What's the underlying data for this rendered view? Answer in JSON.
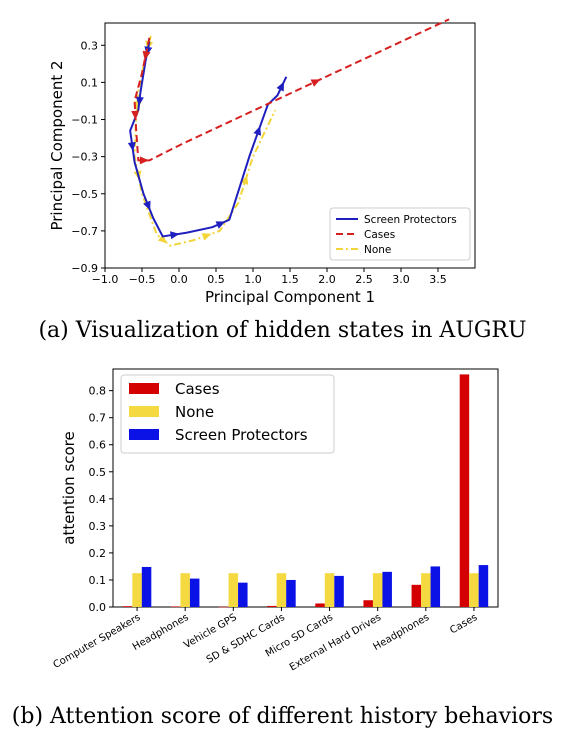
{
  "captions": {
    "a": "(a) Visualization of hidden states in AUGRU",
    "b": "(b) Attention score of different history behaviors"
  },
  "chart_data": [
    {
      "type": "line",
      "xlabel": "Principal Component 1",
      "ylabel": "Principal Component 2",
      "xlim": [
        -1.0,
        4.0
      ],
      "ylim": [
        -0.9,
        0.42
      ],
      "xticks": [
        "-1.0",
        "-0.5",
        "0.0",
        "0.5",
        "1.0",
        "1.5",
        "2.0",
        "2.5",
        "3.0",
        "3.5"
      ],
      "yticks": [
        "-0.9",
        "-0.7",
        "-0.5",
        "-0.3",
        "-0.1",
        "0.1",
        "0.3"
      ],
      "legend_position": "lower-right",
      "series": [
        {
          "name": "Screen Protectors",
          "color": "#1f1fbf",
          "dash": "solid",
          "points": [
            [
              -0.4,
              0.32
            ],
            [
              -0.45,
              0.22
            ],
            [
              -0.52,
              0.05
            ],
            [
              -0.55,
              -0.05
            ],
            [
              -0.66,
              -0.16
            ],
            [
              -0.6,
              -0.33
            ],
            [
              -0.48,
              -0.5
            ],
            [
              -0.35,
              -0.63
            ],
            [
              -0.22,
              -0.73
            ],
            [
              0.1,
              -0.71
            ],
            [
              0.45,
              -0.68
            ],
            [
              0.68,
              -0.64
            ],
            [
              0.95,
              -0.3
            ],
            [
              1.2,
              -0.02
            ],
            [
              1.33,
              0.03
            ],
            [
              1.45,
              0.13
            ]
          ]
        },
        {
          "name": "Cases",
          "color": "#d62020",
          "dash": "dashed",
          "points": [
            [
              -0.4,
              0.34
            ],
            [
              -0.5,
              0.15
            ],
            [
              -0.6,
              0.0
            ],
            [
              -0.58,
              -0.15
            ],
            [
              -0.55,
              -0.32
            ],
            [
              -0.4,
              -0.32
            ],
            [
              0.05,
              -0.23
            ],
            [
              3.65,
              0.44
            ]
          ]
        },
        {
          "name": "None",
          "color": "#f2d53a",
          "dash": "dashdot",
          "points": [
            [
              -0.38,
              0.35
            ],
            [
              -0.45,
              0.25
            ],
            [
              -0.55,
              0.05
            ],
            [
              -0.58,
              -0.1
            ],
            [
              -0.6,
              -0.3
            ],
            [
              -0.5,
              -0.5
            ],
            [
              -0.3,
              -0.72
            ],
            [
              -0.12,
              -0.78
            ],
            [
              0.2,
              -0.75
            ],
            [
              0.55,
              -0.7
            ],
            [
              0.8,
              -0.55
            ],
            [
              1.0,
              -0.3
            ],
            [
              1.3,
              -0.05
            ]
          ]
        }
      ]
    },
    {
      "type": "bar",
      "ylabel": "attention score",
      "ylim": [
        0,
        0.88
      ],
      "yticks": [
        "0.0",
        "0.1",
        "0.2",
        "0.3",
        "0.4",
        "0.5",
        "0.6",
        "0.7",
        "0.8"
      ],
      "legend_position": "top-left",
      "categories": [
        "Computer Speakers",
        "Headphones",
        "Vehicle GPS",
        "SD & SDHC Cards",
        "Micro SD Cards",
        "External Hard Drives",
        "Headphones",
        "Cases"
      ],
      "series": [
        {
          "name": "Cases",
          "color": "#d40000",
          "values": [
            0.003,
            0.002,
            0.001,
            0.004,
            0.013,
            0.025,
            0.082,
            0.86
          ]
        },
        {
          "name": "None",
          "color": "#f5d940",
          "values": [
            0.125,
            0.125,
            0.125,
            0.125,
            0.125,
            0.125,
            0.125,
            0.125
          ]
        },
        {
          "name": "Screen Protectors",
          "color": "#0b12e6",
          "values": [
            0.148,
            0.105,
            0.09,
            0.1,
            0.115,
            0.13,
            0.15,
            0.155
          ]
        }
      ]
    }
  ]
}
